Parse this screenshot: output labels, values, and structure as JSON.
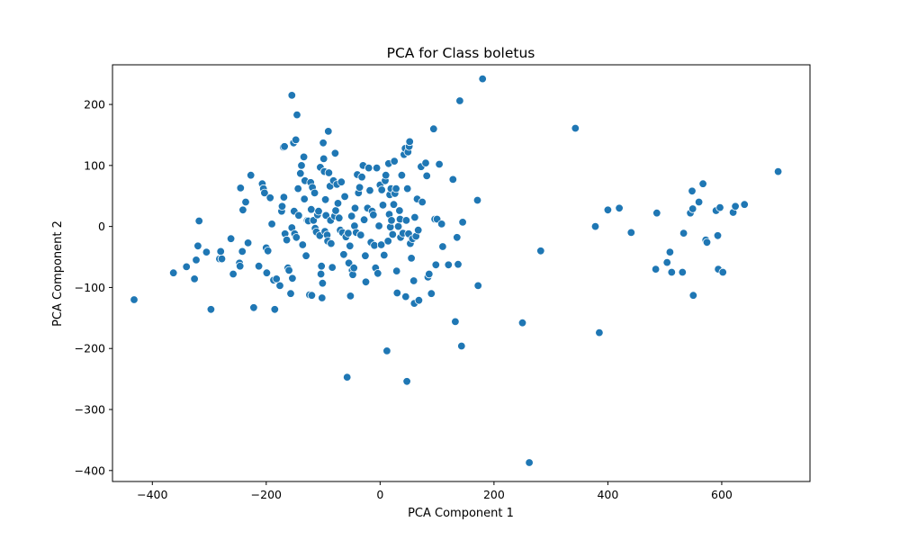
{
  "chart_data": {
    "type": "scatter",
    "title": "PCA for Class boletus",
    "xlabel": "PCA Component 1",
    "ylabel": "PCA Component 2",
    "xlim": [
      -470,
      755
    ],
    "ylim": [
      -418,
      265
    ],
    "xticks": [
      -400,
      -200,
      0,
      200,
      400,
      600
    ],
    "yticks": [
      -400,
      -300,
      -200,
      -100,
      0,
      100,
      200
    ],
    "grid": false,
    "marker_color": "#1f77b4",
    "marker_edge_color": "#ffffff",
    "points": [
      [
        -432,
        -120
      ],
      [
        -363,
        -76
      ],
      [
        -340,
        -66
      ],
      [
        -326,
        -86
      ],
      [
        -323,
        -55
      ],
      [
        -320,
        -32
      ],
      [
        -318,
        9
      ],
      [
        -305,
        -42
      ],
      [
        -297,
        -136
      ],
      [
        -282,
        -53
      ],
      [
        -280,
        -41
      ],
      [
        -278,
        -53
      ],
      [
        -262,
        -20
      ],
      [
        -258,
        -78
      ],
      [
        -247,
        -60
      ],
      [
        -246,
        -65
      ],
      [
        -245,
        63
      ],
      [
        -242,
        -41
      ],
      [
        -241,
        27
      ],
      [
        -236,
        40
      ],
      [
        -232,
        -27
      ],
      [
        -227,
        84
      ],
      [
        -222,
        -133
      ],
      [
        -213,
        -65
      ],
      [
        -207,
        70
      ],
      [
        -205,
        62
      ],
      [
        -203,
        55
      ],
      [
        -200,
        -35
      ],
      [
        -199,
        -76
      ],
      [
        -197,
        -40
      ],
      [
        -193,
        47
      ],
      [
        -190,
        4
      ],
      [
        -187,
        -88
      ],
      [
        -185,
        -136
      ],
      [
        -182,
        -86
      ],
      [
        -176,
        -97
      ],
      [
        -173,
        25
      ],
      [
        -172,
        33
      ],
      [
        -170,
        130
      ],
      [
        -169,
        48
      ],
      [
        -168,
        131
      ],
      [
        -167,
        -12
      ],
      [
        -164,
        -22
      ],
      [
        -162,
        -68
      ],
      [
        -160,
        -72
      ],
      [
        -157,
        -110
      ],
      [
        -155,
        215
      ],
      [
        -155,
        -2
      ],
      [
        -154,
        -85
      ],
      [
        -152,
        137
      ],
      [
        -151,
        25
      ],
      [
        -150,
        -12
      ],
      [
        -148,
        142
      ],
      [
        -147,
        -18
      ],
      [
        -146,
        183
      ],
      [
        -144,
        62
      ],
      [
        -143,
        18
      ],
      [
        -140,
        87
      ],
      [
        -138,
        100
      ],
      [
        -136,
        -30
      ],
      [
        -134,
        114
      ],
      [
        -133,
        45
      ],
      [
        -132,
        75
      ],
      [
        -130,
        -48
      ],
      [
        -128,
        10
      ],
      [
        -126,
        9
      ],
      [
        -124,
        -112
      ],
      [
        -122,
        72
      ],
      [
        -121,
        28
      ],
      [
        -120,
        -113
      ],
      [
        -119,
        64
      ],
      [
        -117,
        10
      ],
      [
        -115,
        55
      ],
      [
        -114,
        -3
      ],
      [
        -112,
        -9
      ],
      [
        -110,
        19
      ],
      [
        -108,
        25
      ],
      [
        -106,
        -15
      ],
      [
        -105,
        97
      ],
      [
        -104,
        -78
      ],
      [
        -103,
        -65
      ],
      [
        -102,
        -117
      ],
      [
        -101,
        -93
      ],
      [
        -100,
        137
      ],
      [
        -99,
        111
      ],
      [
        -98,
        90
      ],
      [
        -97,
        -8
      ],
      [
        -96,
        44
      ],
      [
        -95,
        18
      ],
      [
        -93,
        -14
      ],
      [
        -92,
        -24
      ],
      [
        -91,
        156
      ],
      [
        -90,
        88
      ],
      [
        -88,
        66
      ],
      [
        -87,
        10
      ],
      [
        -86,
        -28
      ],
      [
        -84,
        -67
      ],
      [
        -82,
        75
      ],
      [
        -80,
        17
      ],
      [
        -79,
        120
      ],
      [
        -78,
        26
      ],
      [
        -76,
        69
      ],
      [
        -74,
        38
      ],
      [
        -72,
        14
      ],
      [
        -70,
        -6
      ],
      [
        -68,
        73
      ],
      [
        -66,
        -10
      ],
      [
        -64,
        -46
      ],
      [
        -62,
        49
      ],
      [
        -60,
        -17
      ],
      [
        -58,
        -247
      ],
      [
        -56,
        -11
      ],
      [
        -55,
        -60
      ],
      [
        -53,
        -32
      ],
      [
        -52,
        -114
      ],
      [
        -50,
        17
      ],
      [
        -49,
        -72
      ],
      [
        -48,
        -79
      ],
      [
        -46,
        -68
      ],
      [
        -45,
        1
      ],
      [
        -44,
        30
      ],
      [
        -42,
        -10
      ],
      [
        -40,
        85
      ],
      [
        -38,
        55
      ],
      [
        -36,
        64
      ],
      [
        -34,
        -14
      ],
      [
        -32,
        81
      ],
      [
        -30,
        100
      ],
      [
        -28,
        11
      ],
      [
        -26,
        -48
      ],
      [
        -25,
        -91
      ],
      [
        -22,
        30
      ],
      [
        -20,
        96
      ],
      [
        -18,
        59
      ],
      [
        -16,
        -26
      ],
      [
        -14,
        25
      ],
      [
        -12,
        19
      ],
      [
        -10,
        -31
      ],
      [
        -8,
        -68
      ],
      [
        -6,
        96
      ],
      [
        -4,
        -77
      ],
      [
        -2,
        1
      ],
      [
        0,
        68
      ],
      [
        2,
        -30
      ],
      [
        3,
        60
      ],
      [
        5,
        35
      ],
      [
        7,
        -47
      ],
      [
        9,
        75
      ],
      [
        10,
        84
      ],
      [
        12,
        -204
      ],
      [
        14,
        -24
      ],
      [
        15,
        103
      ],
      [
        16,
        20
      ],
      [
        17,
        52
      ],
      [
        18,
        -1
      ],
      [
        19,
        62
      ],
      [
        20,
        10
      ],
      [
        22,
        -13
      ],
      [
        24,
        36
      ],
      [
        25,
        107
      ],
      [
        26,
        54
      ],
      [
        28,
        62
      ],
      [
        29,
        -73
      ],
      [
        30,
        -109
      ],
      [
        32,
        0
      ],
      [
        34,
        26
      ],
      [
        35,
        12
      ],
      [
        36,
        -18
      ],
      [
        38,
        84
      ],
      [
        40,
        -11
      ],
      [
        42,
        118
      ],
      [
        44,
        128
      ],
      [
        45,
        -115
      ],
      [
        46,
        10
      ],
      [
        47,
        -254
      ],
      [
        48,
        62
      ],
      [
        49,
        122
      ],
      [
        50,
        -12
      ],
      [
        51,
        131
      ],
      [
        52,
        139
      ],
      [
        53,
        -28
      ],
      [
        55,
        -52
      ],
      [
        57,
        -20
      ],
      [
        59,
        -89
      ],
      [
        60,
        -126
      ],
      [
        61,
        15
      ],
      [
        63,
        -16
      ],
      [
        65,
        45
      ],
      [
        67,
        -6
      ],
      [
        68,
        -121
      ],
      [
        72,
        98
      ],
      [
        74,
        40
      ],
      [
        80,
        104
      ],
      [
        82,
        83
      ],
      [
        84,
        -83
      ],
      [
        86,
        -78
      ],
      [
        90,
        -110
      ],
      [
        94,
        160
      ],
      [
        96,
        12
      ],
      [
        98,
        -63
      ],
      [
        100,
        12
      ],
      [
        104,
        102
      ],
      [
        108,
        4
      ],
      [
        110,
        -33
      ],
      [
        120,
        -63
      ],
      [
        128,
        77
      ],
      [
        132,
        -156
      ],
      [
        135,
        -18
      ],
      [
        137,
        -62
      ],
      [
        140,
        206
      ],
      [
        143,
        -196
      ],
      [
        145,
        7
      ],
      [
        171,
        43
      ],
      [
        172,
        -97
      ],
      [
        180,
        242
      ],
      [
        250,
        -158
      ],
      [
        262,
        -387
      ],
      [
        282,
        -40
      ],
      [
        343,
        161
      ],
      [
        378,
        0
      ],
      [
        385,
        -174
      ],
      [
        400,
        27
      ],
      [
        420,
        30
      ],
      [
        441,
        -10
      ],
      [
        484,
        -70
      ],
      [
        486,
        22
      ],
      [
        504,
        -59
      ],
      [
        509,
        -42
      ],
      [
        512,
        -75
      ],
      [
        531,
        -75
      ],
      [
        533,
        -11
      ],
      [
        545,
        22
      ],
      [
        548,
        58
      ],
      [
        549,
        29
      ],
      [
        550,
        -113
      ],
      [
        560,
        40
      ],
      [
        567,
        70
      ],
      [
        572,
        -22
      ],
      [
        574,
        -26
      ],
      [
        590,
        26
      ],
      [
        593,
        -15
      ],
      [
        594,
        -70
      ],
      [
        597,
        31
      ],
      [
        602,
        -75
      ],
      [
        620,
        23
      ],
      [
        624,
        33
      ],
      [
        640,
        36
      ],
      [
        699,
        90
      ]
    ]
  }
}
